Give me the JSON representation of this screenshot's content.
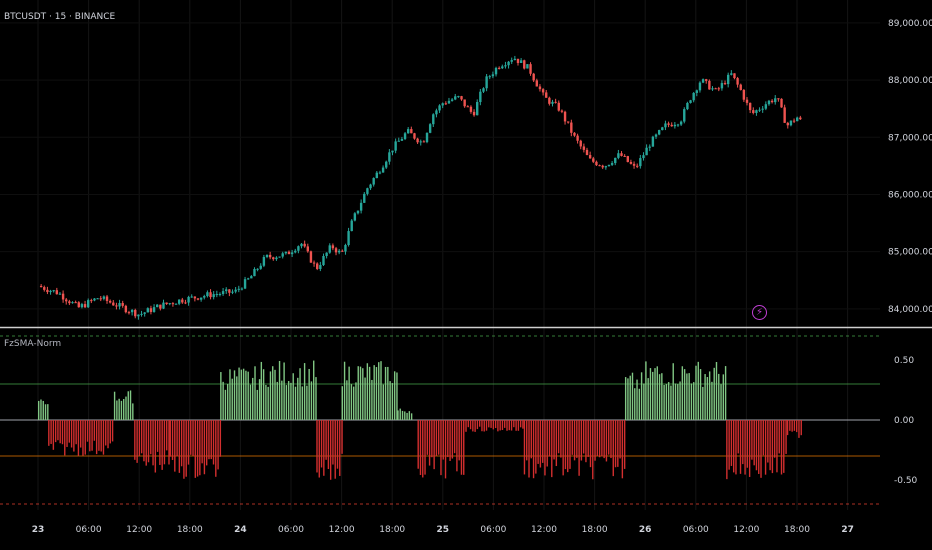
{
  "header": {
    "symbol_label": "BTCUSDT · 15 · BINANCE"
  },
  "indicator": {
    "name": "FzSMA-Norm"
  },
  "colors": {
    "up": "#26a69a",
    "down": "#ef5350",
    "osc_pos": "#81c784",
    "osc_neg": "#d32f2f",
    "zero_line": "#b2b5be",
    "upper_dash": "#4caf50",
    "lower_dash": "#f44336",
    "upper_mid": "#4caf50",
    "lower_mid": "#f57c00"
  },
  "icons": {
    "alert": "lightning-icon"
  },
  "chart_data": [
    {
      "type": "candlestick",
      "title": "BTCUSDT · 15 · BINANCE",
      "x_ticks": [
        "23",
        "06:00",
        "12:00",
        "18:00",
        "24",
        "06:00",
        "12:00",
        "18:00",
        "25",
        "06:00",
        "12:00",
        "18:00",
        "26",
        "06:00",
        "12:00",
        "18:00",
        "27"
      ],
      "y_ticks": [
        "89,000.00",
        "88,000.00",
        "87,000.00",
        "86,000.00",
        "85,000.00",
        "84,000.00"
      ],
      "ylim": [
        83700,
        89400
      ],
      "price_path": [
        {
          "x": 0,
          "y": 84400
        },
        {
          "x": 0.4,
          "y": 84280
        },
        {
          "x": 0.8,
          "y": 84020
        },
        {
          "x": 1.2,
          "y": 84200
        },
        {
          "x": 1.6,
          "y": 84050
        },
        {
          "x": 2.0,
          "y": 83900
        },
        {
          "x": 2.4,
          "y": 84050
        },
        {
          "x": 2.8,
          "y": 84150
        },
        {
          "x": 3.4,
          "y": 84250
        },
        {
          "x": 3.9,
          "y": 84300
        },
        {
          "x": 4.2,
          "y": 84550
        },
        {
          "x": 4.5,
          "y": 84900
        },
        {
          "x": 4.9,
          "y": 84950
        },
        {
          "x": 5.2,
          "y": 85150
        },
        {
          "x": 5.5,
          "y": 84700
        },
        {
          "x": 5.8,
          "y": 85100
        },
        {
          "x": 6.0,
          "y": 84950
        },
        {
          "x": 6.2,
          "y": 85500
        },
        {
          "x": 6.5,
          "y": 86100
        },
        {
          "x": 6.8,
          "y": 86500
        },
        {
          "x": 7.0,
          "y": 86800
        },
        {
          "x": 7.3,
          "y": 87100
        },
        {
          "x": 7.6,
          "y": 86900
        },
        {
          "x": 7.8,
          "y": 87400
        },
        {
          "x": 8.0,
          "y": 87600
        },
        {
          "x": 8.3,
          "y": 87700
        },
        {
          "x": 8.6,
          "y": 87400
        },
        {
          "x": 8.85,
          "y": 88000
        },
        {
          "x": 9.1,
          "y": 88250
        },
        {
          "x": 9.4,
          "y": 88400
        },
        {
          "x": 9.7,
          "y": 88200
        },
        {
          "x": 10.0,
          "y": 87700
        },
        {
          "x": 10.3,
          "y": 87500
        },
        {
          "x": 10.6,
          "y": 87000
        },
        {
          "x": 10.9,
          "y": 86600
        },
        {
          "x": 11.2,
          "y": 86500
        },
        {
          "x": 11.5,
          "y": 86700
        },
        {
          "x": 11.8,
          "y": 86450
        },
        {
          "x": 12.1,
          "y": 86900
        },
        {
          "x": 12.4,
          "y": 87200
        },
        {
          "x": 12.7,
          "y": 87300
        },
        {
          "x": 12.9,
          "y": 87700
        },
        {
          "x": 13.1,
          "y": 88000
        },
        {
          "x": 13.4,
          "y": 87800
        },
        {
          "x": 13.7,
          "y": 88100
        },
        {
          "x": 13.9,
          "y": 87800
        },
        {
          "x": 14.1,
          "y": 87400
        },
        {
          "x": 14.4,
          "y": 87600
        },
        {
          "x": 14.6,
          "y": 87700
        },
        {
          "x": 14.8,
          "y": 87200
        },
        {
          "x": 15.0,
          "y": 87350
        },
        {
          "x": 15.1,
          "y": 87250
        }
      ]
    },
    {
      "type": "bar",
      "title": "FzSMA-Norm",
      "y_ticks": [
        "0.50",
        "0.00",
        "-0.50"
      ],
      "ylim": [
        -0.75,
        0.75
      ],
      "reference_lines": [
        0.7,
        0.3,
        0.0,
        -0.3,
        -0.7
      ],
      "segments": [
        {
          "x0": 0.0,
          "x1": 0.2,
          "v": 0.2
        },
        {
          "x0": 0.2,
          "x1": 1.5,
          "v": -0.3
        },
        {
          "x0": 1.5,
          "x1": 1.9,
          "v": 0.25
        },
        {
          "x0": 1.9,
          "x1": 2.6,
          "v": -0.45
        },
        {
          "x0": 2.6,
          "x1": 3.6,
          "v": -0.5
        },
        {
          "x0": 3.6,
          "x1": 4.4,
          "v": 0.45
        },
        {
          "x0": 4.4,
          "x1": 5.5,
          "v": 0.5
        },
        {
          "x0": 5.5,
          "x1": 6.0,
          "v": -0.5
        },
        {
          "x0": 6.0,
          "x1": 7.1,
          "v": 0.5
        },
        {
          "x0": 7.1,
          "x1": 7.4,
          "v": 0.1
        },
        {
          "x0": 7.5,
          "x1": 8.4,
          "v": -0.5
        },
        {
          "x0": 8.4,
          "x1": 9.6,
          "v": -0.1
        },
        {
          "x0": 9.6,
          "x1": 11.6,
          "v": -0.5
        },
        {
          "x0": 11.6,
          "x1": 12.0,
          "v": 0.4
        },
        {
          "x0": 12.0,
          "x1": 13.6,
          "v": 0.5
        },
        {
          "x0": 13.6,
          "x1": 14.8,
          "v": -0.5
        },
        {
          "x0": 14.8,
          "x1": 15.1,
          "v": -0.15
        }
      ]
    }
  ]
}
